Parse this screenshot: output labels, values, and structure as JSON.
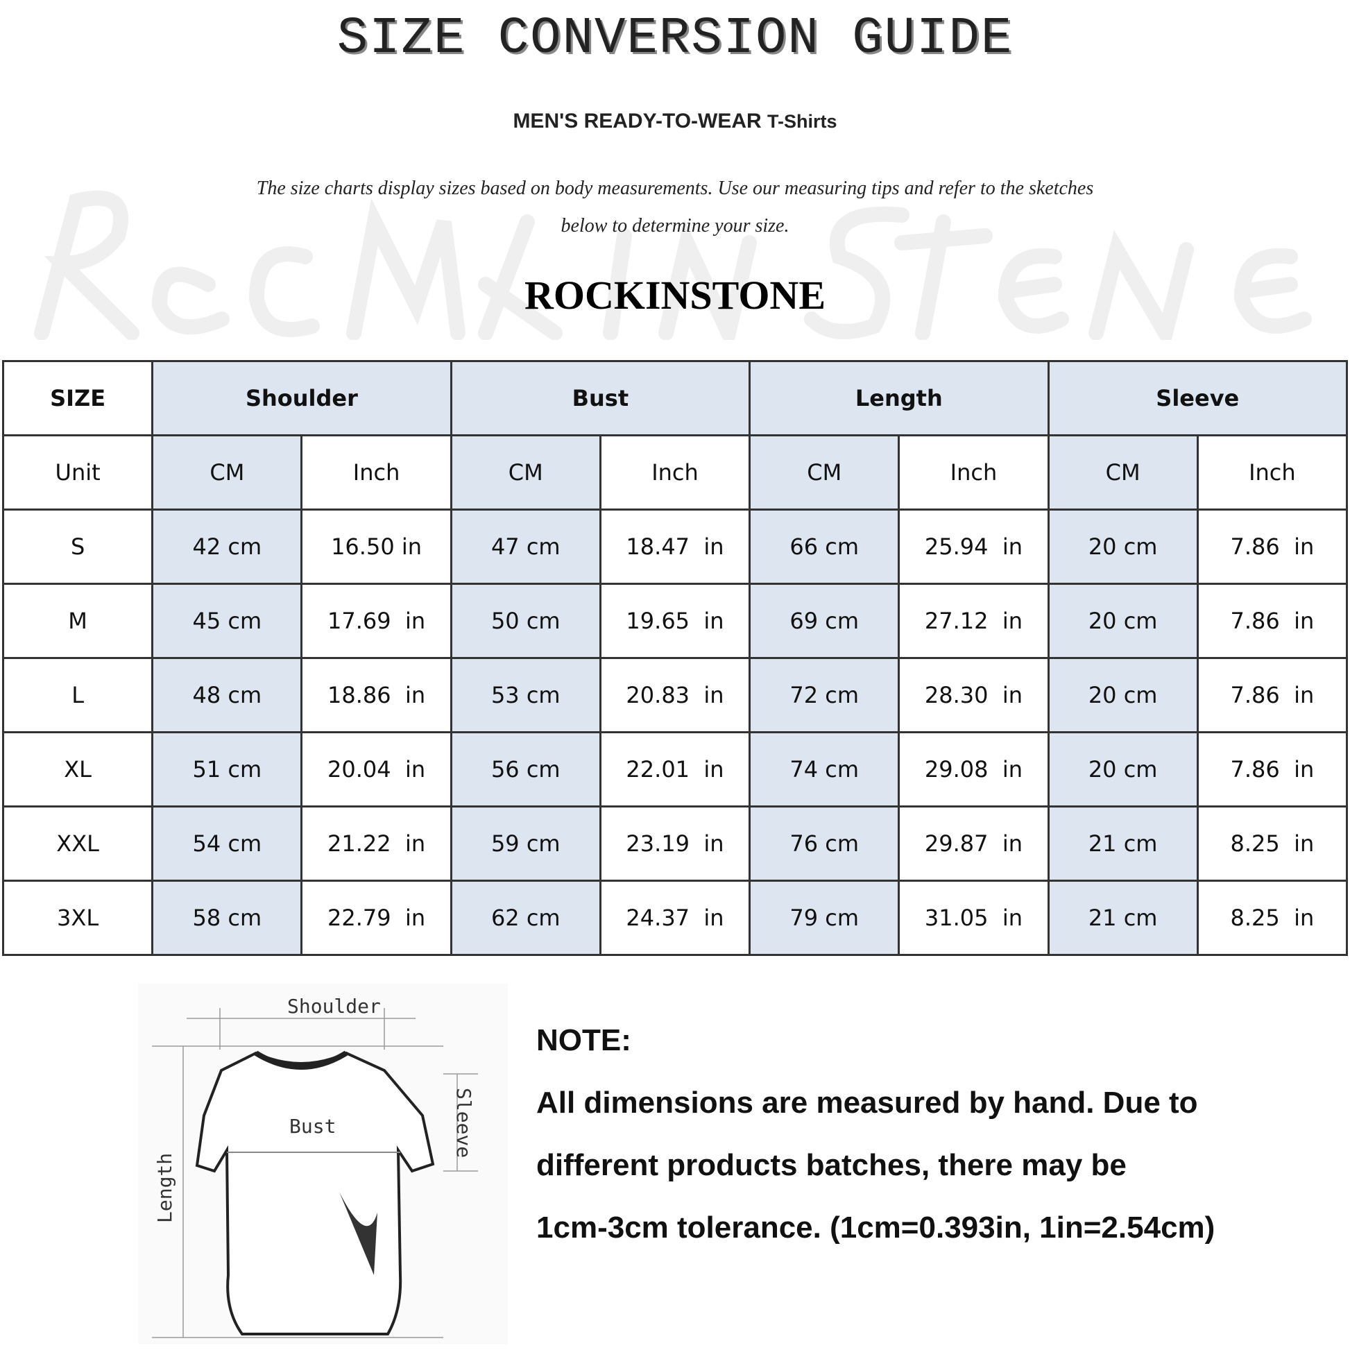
{
  "header": {
    "title": "SIZE CONVERSION GUIDE",
    "subtitle_main": "MEN'S READY-TO-WEAR",
    "subtitle_product": "T-Shirts",
    "intro_line1": "The size charts display sizes based on body measurements. Use our measuring tips and refer to the sketches",
    "intro_line2": "below to determine your size.",
    "watermark": "Rock In Stone",
    "brand": "ROCKINSTONE"
  },
  "table": {
    "corner_label": "SIZE",
    "unit_label": "Unit",
    "groups": [
      "Shoulder",
      "Bust",
      "Length",
      "Sleeve"
    ],
    "units": [
      "CM",
      "Inch",
      "CM",
      "Inch",
      "CM",
      "Inch",
      "CM",
      "Inch"
    ],
    "header_bg": "#dde6f0",
    "rows": [
      {
        "size": "S",
        "cells": [
          "42 cm",
          "16.50 in",
          "47 cm",
          "18.47  in",
          "66 cm",
          "25.94  in",
          "20 cm",
          "7.86  in"
        ]
      },
      {
        "size": "M",
        "cells": [
          "45 cm",
          "17.69  in",
          "50 cm",
          "19.65  in",
          "69 cm",
          "27.12  in",
          "20 cm",
          "7.86  in"
        ]
      },
      {
        "size": "L",
        "cells": [
          "48 cm",
          "18.86  in",
          "53 cm",
          "20.83  in",
          "72 cm",
          "28.30  in",
          "20 cm",
          "7.86  in"
        ]
      },
      {
        "size": "XL",
        "cells": [
          "51 cm",
          "20.04  in",
          "56 cm",
          "22.01  in",
          "74 cm",
          "29.08  in",
          "20 cm",
          "7.86  in"
        ]
      },
      {
        "size": "XXL",
        "cells": [
          "54 cm",
          "21.22  in",
          "59 cm",
          "23.19  in",
          "76 cm",
          "29.87  in",
          "21 cm",
          "8.25  in"
        ]
      },
      {
        "size": "3XL",
        "cells": [
          "58 cm",
          "22.79  in",
          "62 cm",
          "24.37  in",
          "79 cm",
          "31.05  in",
          "21 cm",
          "8.25  in"
        ]
      }
    ]
  },
  "diagram": {
    "shoulder": "Shoulder",
    "bust": "Bust",
    "length": "Length",
    "sleeve": "Sleeve"
  },
  "note": {
    "heading": "NOTE:",
    "line1": "All dimensions are measured by hand. Due to",
    "line2": "different products batches, there may be",
    "line3": "1cm-3cm tolerance. (1cm=0.393in, 1in=2.54cm)"
  }
}
